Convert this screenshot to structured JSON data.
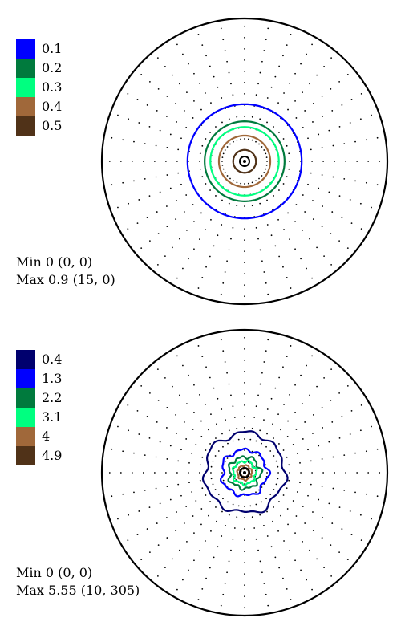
{
  "chart_data": [
    {
      "type": "polar-contour",
      "legend": [
        {
          "label": "0.1",
          "value": 0.1,
          "color": "#0000ff"
        },
        {
          "label": "0.2",
          "value": 0.2,
          "color": "#007a3d"
        },
        {
          "label": "0.3",
          "value": 0.3,
          "color": "#00ff80"
        },
        {
          "label": "0.4",
          "value": 0.4,
          "color": "#a0683a"
        },
        {
          "label": "0.5",
          "value": 0.5,
          "color": "#503218"
        }
      ],
      "min_text": "Min 0 (0, 0)",
      "max_text": "Max 0.9 (15, 0)",
      "grid": {
        "rings": 12,
        "dot_spacing_deg": 10
      },
      "contours": [
        {
          "level": 0.1,
          "radius_frac": 0.4,
          "wobble": 0.0
        },
        {
          "level": 0.2,
          "radius_frac": 0.28,
          "wobble": 0.0
        },
        {
          "level": 0.3,
          "radius_frac": 0.24,
          "wobble": 0.0
        },
        {
          "level": 0.4,
          "radius_frac": 0.18,
          "wobble": 0.0
        },
        {
          "level": 0.5,
          "radius_frac": 0.08,
          "wobble": 0.0
        }
      ]
    },
    {
      "type": "polar-contour",
      "legend": [
        {
          "label": "0.4",
          "value": 0.4,
          "color": "#00006e"
        },
        {
          "label": "1.3",
          "value": 1.3,
          "color": "#0000ff"
        },
        {
          "label": "2.2",
          "value": 2.2,
          "color": "#007a3d"
        },
        {
          "label": "3.1",
          "value": 3.1,
          "color": "#00ff80"
        },
        {
          "label": "4",
          "value": 4,
          "color": "#a0683a"
        },
        {
          "label": "4.9",
          "value": 4.9,
          "color": "#503218"
        }
      ],
      "min_text": "Min 0 (0, 0)",
      "max_text": "Max 5.55 (10, 305)",
      "grid": {
        "rings": 12,
        "dot_spacing_deg": 10
      },
      "contours": [
        {
          "level": 0.4,
          "radius_frac": 0.28,
          "wobble": 0.1
        },
        {
          "level": 1.3,
          "radius_frac": 0.16,
          "wobble": 0.14
        },
        {
          "level": 2.2,
          "radius_frac": 0.11,
          "wobble": 0.18
        },
        {
          "level": 3.1,
          "radius_frac": 0.08,
          "wobble": 0.18
        },
        {
          "level": 4,
          "radius_frac": 0.05,
          "wobble": 0.15
        },
        {
          "level": 4.9,
          "radius_frac": 0.03,
          "wobble": 0.1
        }
      ]
    }
  ]
}
